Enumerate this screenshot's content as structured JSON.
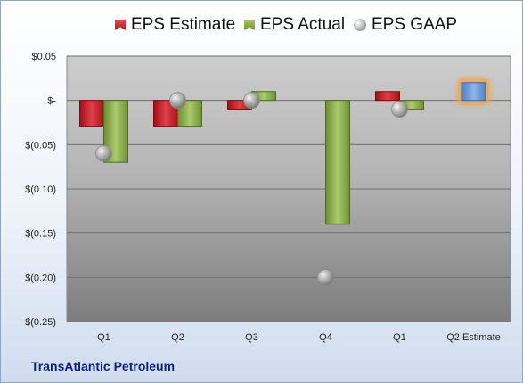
{
  "chart_data": {
    "type": "bar",
    "categories": [
      "Q1",
      "Q2",
      "Q3",
      "Q4",
      "Q1",
      "Q2 Estimate"
    ],
    "series": [
      {
        "name": "EPS Estimate",
        "values": [
          -0.03,
          -0.03,
          -0.01,
          null,
          0.01,
          null
        ],
        "color": "#c0202a"
      },
      {
        "name": "EPS Actual",
        "values": [
          -0.07,
          -0.03,
          0.01,
          -0.14,
          -0.01,
          0.02
        ],
        "color": "#8db04e"
      },
      {
        "name": "EPS GAAP",
        "values": [
          -0.06,
          0.0,
          0.0,
          -0.2,
          -0.01,
          null
        ],
        "color": "#a0a0a0"
      }
    ],
    "highlight": {
      "category_index": 5,
      "value": 0.02,
      "color": "#6f9fd8",
      "glow": "#f3a243"
    },
    "yticks": [
      "$0.05",
      "$-",
      "$(0.05)",
      "$(0.10)",
      "$(0.15)",
      "$(0.20)",
      "$(0.25)"
    ],
    "ytick_values": [
      0.05,
      0,
      -0.05,
      -0.1,
      -0.15,
      -0.2,
      -0.25
    ],
    "ylim": [
      -0.25,
      0.05
    ],
    "grid": true,
    "legend_position": "top"
  },
  "legend": {
    "estimate": "EPS Estimate",
    "actual": "EPS Actual",
    "gaap": "EPS GAAP"
  },
  "company": "TransAtlantic Petroleum"
}
